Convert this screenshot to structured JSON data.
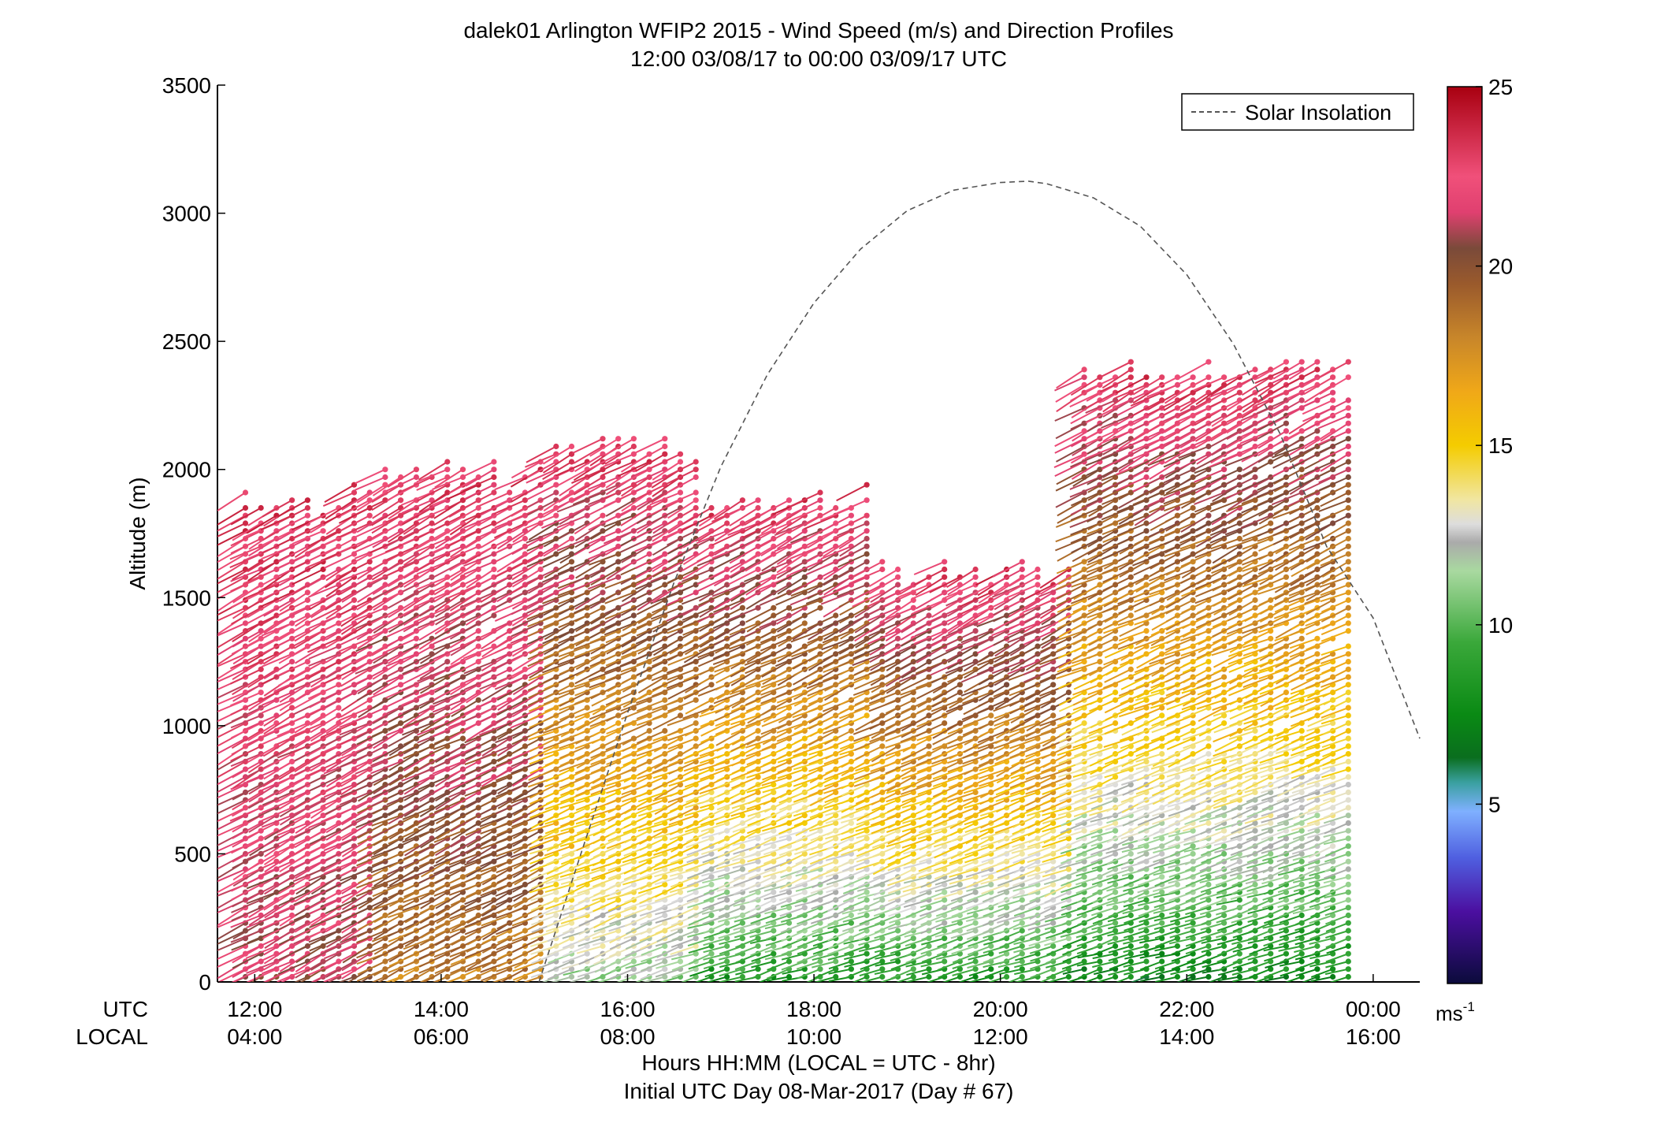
{
  "chart_data": {
    "type": "scatter",
    "title": "dalek01 Arlington WFIP2 2015 - Wind Speed (m/s) and Direction Profiles",
    "subtitle": "12:00 03/08/17 to 00:00 03/09/17  UTC",
    "ylabel": "Altitude (m)",
    "xlabel": "Hours HH:MM  (LOCAL = UTC - 8hr)",
    "footer": "Initial UTC Day 08-Mar-2017 (Day # 67)",
    "row_labels": {
      "utc": "UTC",
      "local": "LOCAL"
    },
    "xlim": [
      11.6,
      24.5
    ],
    "ylim": [
      0,
      3500
    ],
    "yticks": [
      0,
      500,
      1000,
      1500,
      2000,
      2500,
      3000,
      3500
    ],
    "xticks": [
      {
        "value": 12,
        "utc": "12:00",
        "local": "04:00"
      },
      {
        "value": 14,
        "utc": "14:00",
        "local": "06:00"
      },
      {
        "value": 16,
        "utc": "16:00",
        "local": "08:00"
      },
      {
        "value": 18,
        "utc": "18:00",
        "local": "10:00"
      },
      {
        "value": 20,
        "utc": "20:00",
        "local": "12:00"
      },
      {
        "value": 22,
        "utc": "22:00",
        "local": "14:00"
      },
      {
        "value": 24,
        "utc": "00:00",
        "local": "16:00"
      }
    ],
    "legend": {
      "label": "Solar Insolation",
      "position": "top-right",
      "style": "dashed",
      "color": "#555555"
    },
    "colorbar": {
      "range": [
        0,
        25
      ],
      "ticks": [
        5,
        10,
        15,
        20,
        25
      ],
      "unit_label": "ms",
      "unit_exponent": "-1",
      "stops": [
        {
          "v": 0,
          "color": "#0b0b3b"
        },
        {
          "v": 2,
          "color": "#4b0fa0"
        },
        {
          "v": 3.5,
          "color": "#4f5fe0"
        },
        {
          "v": 4.8,
          "color": "#7fb0ff"
        },
        {
          "v": 5.6,
          "color": "#3aa0a0"
        },
        {
          "v": 6.3,
          "color": "#0a6e1e"
        },
        {
          "v": 7.5,
          "color": "#0a8a14"
        },
        {
          "v": 9.5,
          "color": "#3aa83a"
        },
        {
          "v": 11.5,
          "color": "#a9d9a0"
        },
        {
          "v": 12.3,
          "color": "#aaaaaa"
        },
        {
          "v": 12.8,
          "color": "#dddddd"
        },
        {
          "v": 13.5,
          "color": "#f1e6a0"
        },
        {
          "v": 15,
          "color": "#f4cc00"
        },
        {
          "v": 16.5,
          "color": "#f0a818"
        },
        {
          "v": 18,
          "color": "#c8862a"
        },
        {
          "v": 19.5,
          "color": "#9a5a2c"
        },
        {
          "v": 20.5,
          "color": "#7a4a3a"
        },
        {
          "v": 21.5,
          "color": "#e04070"
        },
        {
          "v": 22.5,
          "color": "#f0507a"
        },
        {
          "v": 25,
          "color": "#a80010"
        }
      ]
    },
    "solar_insolation": {
      "description_units": "altitude axis units",
      "x": [
        15.05,
        15.5,
        16.0,
        16.5,
        17.0,
        17.5,
        18.0,
        18.5,
        19.0,
        19.5,
        20.0,
        20.3,
        20.5,
        21.0,
        21.5,
        22.0,
        22.5,
        23.0,
        23.5,
        24.0,
        24.5
      ],
      "y": [
        0,
        500,
        1050,
        1560,
        2010,
        2370,
        2650,
        2860,
        3010,
        3090,
        3120,
        3125,
        3115,
        3060,
        2950,
        2760,
        2490,
        2140,
        1700,
        1420,
        950
      ]
    },
    "profiles": {
      "note": "wind barbs: one profile every ~10 min, gates every ~30 m",
      "x_start": 11.9,
      "x_end": 23.85,
      "segments": [
        {
          "t0": 11.9,
          "t1": 13.3,
          "z_top": 1900,
          "z_low_speed": 21
        },
        {
          "t0": 13.3,
          "t1": 15.2,
          "z_top": 2000,
          "z_low_speed": 18
        },
        {
          "t0": 15.2,
          "t1": 16.8,
          "z_top": 2100,
          "z_low_speed": 11
        },
        {
          "t0": 16.8,
          "t1": 18.6,
          "z_top": 1900,
          "z_low_speed": 8
        },
        {
          "t0": 18.6,
          "t1": 20.8,
          "z_top": 1600,
          "z_low_speed": 8
        },
        {
          "t0": 20.8,
          "t1": 23.85,
          "z_top": 2400,
          "z_low_speed": 7
        }
      ]
    }
  }
}
